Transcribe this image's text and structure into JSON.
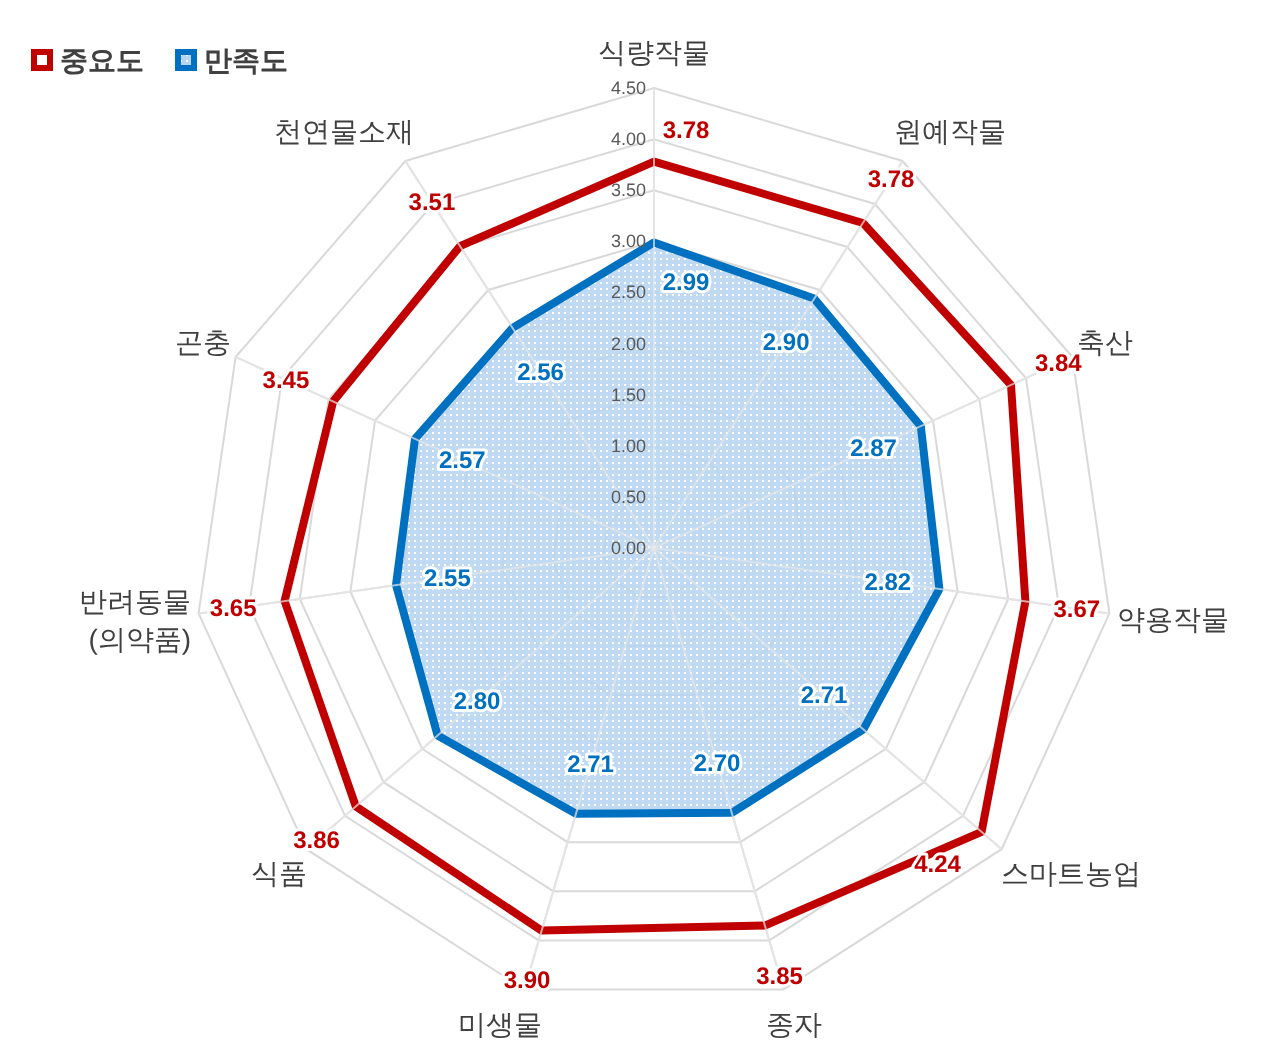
{
  "chart_data": {
    "type": "radar",
    "categories": [
      "식량작물",
      "원예작물",
      "축산",
      "약용작물",
      "스마트농업",
      "종자",
      "미생물",
      "식품",
      "반려동물\n(의약품)",
      "곤충",
      "천연물소재"
    ],
    "series": [
      {
        "name": "중요도",
        "color": "#c00000",
        "values": [
          3.78,
          3.78,
          3.84,
          3.67,
          4.24,
          3.85,
          3.9,
          3.86,
          3.65,
          3.45,
          3.51
        ],
        "value_labels": [
          "3.78",
          "3.78",
          "3.84",
          "3.67",
          "4.24",
          "3.85",
          "3.90",
          "3.86",
          "3.65",
          "3.45",
          "3.51"
        ]
      },
      {
        "name": "만족도",
        "color": "#0070c0",
        "values": [
          2.99,
          2.9,
          2.87,
          2.82,
          2.71,
          2.7,
          2.71,
          2.8,
          2.55,
          2.57,
          2.56
        ],
        "value_labels": [
          "2.99",
          "2.90",
          "2.87",
          "2.82",
          "2.71",
          "2.70",
          "2.71",
          "2.80",
          "2.55",
          "2.57",
          "2.56"
        ]
      }
    ],
    "ylim": [
      0,
      4.5
    ],
    "yticks": [
      {
        "value": 0,
        "label": "0.00"
      },
      {
        "value": 0.5,
        "label": "0.50"
      },
      {
        "value": 1,
        "label": "1.00"
      },
      {
        "value": 1.5,
        "label": "1.50"
      },
      {
        "value": 2,
        "label": "2.00"
      },
      {
        "value": 2.5,
        "label": "2.50"
      },
      {
        "value": 3,
        "label": "3.00"
      },
      {
        "value": 3.5,
        "label": "3.50"
      },
      {
        "value": 4,
        "label": "4.00"
      },
      {
        "value": 4.5,
        "label": "4.50"
      }
    ],
    "grid": true,
    "legend": "top left",
    "marker": "none"
  }
}
